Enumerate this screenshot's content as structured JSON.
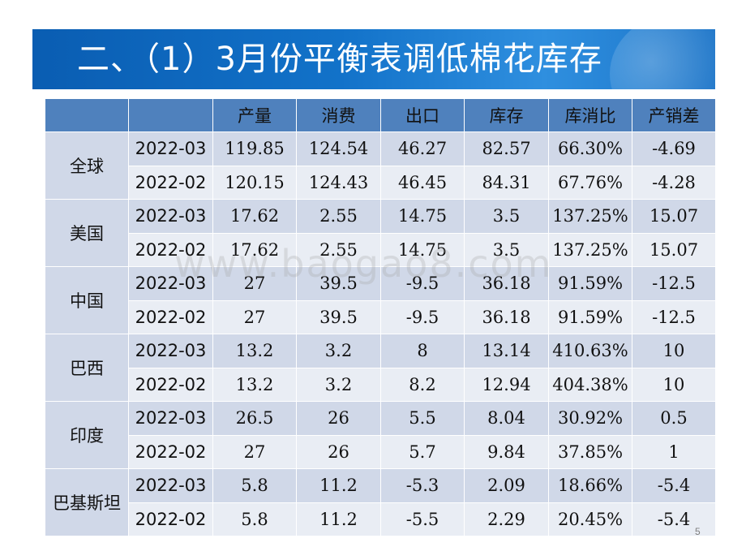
{
  "title": "二、（1）3月份平衡表调低棉花库存",
  "table": {
    "headers": [
      "",
      "",
      "产量",
      "消费",
      "出口",
      "库存",
      "库消比",
      "产销差"
    ],
    "groups": [
      {
        "country": "全球",
        "rows": [
          [
            "2022-03",
            "119.85",
            "124.54",
            "46.27",
            "82.57",
            "66.30%",
            "-4.69"
          ],
          [
            "2022-02",
            "120.15",
            "124.43",
            "46.45",
            "84.31",
            "67.76%",
            "-4.28"
          ]
        ]
      },
      {
        "country": "美国",
        "rows": [
          [
            "2022-03",
            "17.62",
            "2.55",
            "14.75",
            "3.5",
            "137.25%",
            "15.07"
          ],
          [
            "2022-02",
            "17.62",
            "2.55",
            "14.75",
            "3.5",
            "137.25%",
            "15.07"
          ]
        ]
      },
      {
        "country": "中国",
        "rows": [
          [
            "2022-03",
            "27",
            "39.5",
            "-9.5",
            "36.18",
            "91.59%",
            "-12.5"
          ],
          [
            "2022-02",
            "27",
            "39.5",
            "-9.5",
            "36.18",
            "91.59%",
            "-12.5"
          ]
        ]
      },
      {
        "country": "巴西",
        "rows": [
          [
            "2022-03",
            "13.2",
            "3.2",
            "8",
            "13.14",
            "410.63%",
            "10"
          ],
          [
            "2022-02",
            "13.2",
            "3.2",
            "8.2",
            "12.94",
            "404.38%",
            "10"
          ]
        ]
      },
      {
        "country": "印度",
        "rows": [
          [
            "2022-03",
            "26.5",
            "26",
            "5.5",
            "8.04",
            "30.92%",
            "0.5"
          ],
          [
            "2022-02",
            "27",
            "26",
            "5.7",
            "9.84",
            "37.85%",
            "1"
          ]
        ]
      },
      {
        "country": "巴基斯坦",
        "rows": [
          [
            "2022-03",
            "5.8",
            "11.2",
            "-5.3",
            "2.09",
            "18.66%",
            "-5.4"
          ],
          [
            "2022-02",
            "5.8",
            "11.2",
            "-5.5",
            "2.29",
            "20.45%",
            "-5.4"
          ]
        ]
      }
    ]
  },
  "watermark": "www.baogao8.com",
  "page_number": "5",
  "colors": {
    "title_bar": "#1272c9",
    "header_row": "#4f81bd",
    "row_dark": "#d0d8e8",
    "row_light": "#e9edf4"
  }
}
